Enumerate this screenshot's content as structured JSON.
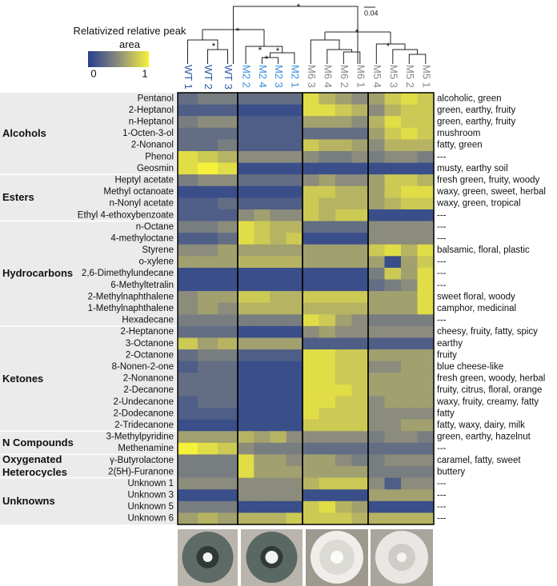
{
  "chart_data": {
    "type": "heatmap",
    "legend_title": "Relativized relative peak area",
    "zlim": [
      0,
      1
    ],
    "zticks": [
      0,
      1
    ],
    "colormap": [
      "#263f8e",
      "#8c8c7c",
      "#f6f13a"
    ],
    "dendrogram_labels": [
      "*",
      "*",
      "*",
      "*",
      "*",
      "*",
      "*",
      "*"
    ],
    "dendrogram_scale": 0.04,
    "column_groups": [
      {
        "color": "#2a5aa8",
        "columns": [
          "WT 1",
          "WT 2",
          "WT 3"
        ]
      },
      {
        "color": "#3a8ed8",
        "columns": [
          "M2 2",
          "M2 4",
          "M2 3",
          "M2 1"
        ]
      },
      {
        "color": "#858585",
        "columns": [
          "M6 3",
          "M6 4",
          "M6 2",
          "M6 1"
        ]
      },
      {
        "color": "#858585",
        "columns": [
          "M5 4",
          "M5 3",
          "M5 2",
          "M5 1"
        ]
      }
    ],
    "row_groups": [
      {
        "name": "Alcohols",
        "rows": [
          "Pentanol",
          "2-Heptanol",
          "n-Heptanol",
          "1-Octen-3-ol",
          "2-Nonanol",
          "Phenol",
          "Geosmin"
        ]
      },
      {
        "name": "Esters",
        "rows": [
          "Heptyl acetate",
          "Methyl octanoate",
          "n-Nonyl acetate",
          "Ethyl 4-ethoxybenzoate"
        ]
      },
      {
        "name": "Hydrocarbons",
        "rows": [
          "n-Octane",
          "4-methyloctane",
          "Styrene",
          "o-xylene",
          "2,6-Dimethylundecane",
          "6-Methyltetralin",
          "2-Methylnaphthalene",
          "1-Methylnaphthalene",
          "Hexadecane"
        ]
      },
      {
        "name": "Ketones",
        "rows": [
          "2-Heptanone",
          "3-Octanone",
          "2-Octanone",
          "8-Nonen-2-one",
          "2-Nonanone",
          "2-Decanone",
          "2-Undecanone",
          "2-Dodecanone",
          "2-Tridecanone"
        ]
      },
      {
        "name": "N Compounds",
        "rows": [
          "3-Methylpyridine",
          "Methenamine"
        ]
      },
      {
        "name": "Oxygenated Heterocycles",
        "rows": [
          "γ-Butyrolactone",
          "2(5H)-Furanone"
        ]
      },
      {
        "name": "Unknowns",
        "rows": [
          "Unknown 1",
          "Unknown 3",
          "Unknown 5",
          "Unknown 6"
        ]
      }
    ],
    "descriptors": [
      "alcoholic, green",
      "green, earthy, fruity",
      "green, earthy, fruity",
      "mushroom",
      "fatty, green",
      "---",
      "musty, earthy soil",
      "fresh green, fruity, woody",
      "waxy, green, sweet, herbal",
      "waxy, green, tropical",
      "---",
      "---",
      "---",
      "balsamic, floral, plastic",
      "---",
      "---",
      "---",
      "sweet floral, woody",
      "camphor, medicinal",
      "---",
      "cheesy, fruity, fatty, spicy",
      "earthy",
      "fruity",
      "blue cheese-like",
      "fresh green, woody, herbal",
      "fruity, citrus, floral, orange",
      "waxy, fruity, creamy, fatty",
      "fatty",
      "fatty, waxy, dairy, milk",
      "green, earthy, hazelnut",
      "---",
      "caramel, fatty, sweet",
      "buttery",
      "---",
      "---",
      "---",
      "---"
    ],
    "values": [
      [
        0.3,
        0.4,
        0.4,
        0.3,
        0.3,
        0.3,
        0.3,
        0.9,
        0.7,
        0.6,
        0.5,
        0.6,
        0.8,
        0.9,
        0.8
      ],
      [
        0.2,
        0.2,
        0.2,
        0.1,
        0.1,
        0.1,
        0.1,
        0.9,
        0.9,
        0.8,
        0.7,
        0.5,
        0.7,
        0.8,
        0.8
      ],
      [
        0.4,
        0.5,
        0.5,
        0.2,
        0.2,
        0.2,
        0.2,
        0.6,
        0.6,
        0.6,
        0.5,
        0.7,
        0.9,
        0.8,
        0.8
      ],
      [
        0.3,
        0.3,
        0.3,
        0.2,
        0.2,
        0.2,
        0.2,
        0.3,
        0.3,
        0.3,
        0.3,
        0.6,
        0.8,
        0.9,
        0.8
      ],
      [
        0.3,
        0.3,
        0.4,
        0.2,
        0.2,
        0.2,
        0.2,
        0.8,
        0.7,
        0.7,
        0.6,
        0.5,
        0.7,
        0.7,
        0.7
      ],
      [
        0.9,
        0.8,
        0.7,
        0.5,
        0.5,
        0.5,
        0.5,
        0.5,
        0.4,
        0.4,
        0.5,
        0.4,
        0.5,
        0.5,
        0.4
      ],
      [
        0.9,
        1.0,
        0.9,
        0.1,
        0.1,
        0.1,
        0.1,
        0.1,
        0.1,
        0.1,
        0.1,
        0.1,
        0.1,
        0.1,
        0.1
      ],
      [
        0.4,
        0.5,
        0.5,
        0.3,
        0.3,
        0.3,
        0.3,
        0.5,
        0.6,
        0.5,
        0.5,
        0.6,
        0.8,
        0.8,
        0.7
      ],
      [
        0.1,
        0.1,
        0.1,
        0.1,
        0.1,
        0.1,
        0.1,
        0.8,
        0.8,
        0.7,
        0.7,
        0.6,
        0.8,
        0.9,
        0.9
      ],
      [
        0.2,
        0.2,
        0.3,
        0.2,
        0.2,
        0.2,
        0.2,
        0.8,
        0.7,
        0.7,
        0.7,
        0.6,
        0.7,
        0.8,
        0.8
      ],
      [
        0.2,
        0.2,
        0.2,
        0.5,
        0.6,
        0.5,
        0.5,
        0.8,
        0.7,
        0.8,
        0.8,
        0.1,
        0.1,
        0.1,
        0.1
      ],
      [
        0.4,
        0.4,
        0.5,
        0.9,
        0.8,
        0.7,
        0.7,
        0.3,
        0.3,
        0.3,
        0.3,
        0.5,
        0.5,
        0.5,
        0.5
      ],
      [
        0.2,
        0.2,
        0.3,
        0.9,
        0.8,
        0.7,
        0.8,
        0.1,
        0.1,
        0.1,
        0.1,
        0.5,
        0.5,
        0.5,
        0.5
      ],
      [
        0.5,
        0.5,
        0.6,
        0.6,
        0.6,
        0.6,
        0.6,
        0.6,
        0.6,
        0.6,
        0.6,
        0.8,
        0.9,
        0.7,
        0.9
      ],
      [
        0.6,
        0.6,
        0.6,
        0.7,
        0.7,
        0.7,
        0.7,
        0.6,
        0.6,
        0.6,
        0.6,
        0.6,
        0.1,
        0.6,
        0.8
      ],
      [
        0.1,
        0.1,
        0.1,
        0.1,
        0.1,
        0.1,
        0.1,
        0.1,
        0.1,
        0.1,
        0.1,
        0.4,
        0.8,
        0.6,
        0.9
      ],
      [
        0.1,
        0.1,
        0.1,
        0.1,
        0.1,
        0.1,
        0.1,
        0.1,
        0.1,
        0.1,
        0.1,
        0.3,
        0.4,
        0.5,
        0.9
      ],
      [
        0.5,
        0.6,
        0.6,
        0.8,
        0.8,
        0.7,
        0.7,
        0.8,
        0.8,
        0.8,
        0.8,
        0.6,
        0.6,
        0.6,
        0.9
      ],
      [
        0.5,
        0.6,
        0.5,
        0.7,
        0.7,
        0.7,
        0.7,
        0.7,
        0.7,
        0.7,
        0.7,
        0.6,
        0.6,
        0.6,
        0.9
      ],
      [
        0.4,
        0.4,
        0.4,
        0.4,
        0.4,
        0.4,
        0.4,
        0.9,
        0.8,
        0.6,
        0.5,
        0.4,
        0.4,
        0.4,
        0.4
      ],
      [
        0.3,
        0.3,
        0.3,
        0.1,
        0.1,
        0.1,
        0.1,
        0.5,
        0.6,
        0.5,
        0.5,
        0.5,
        0.5,
        0.5,
        0.5
      ],
      [
        0.8,
        0.6,
        0.7,
        0.6,
        0.6,
        0.6,
        0.6,
        0.2,
        0.2,
        0.2,
        0.2,
        0.2,
        0.2,
        0.2,
        0.2
      ],
      [
        0.3,
        0.4,
        0.4,
        0.2,
        0.2,
        0.2,
        0.2,
        0.9,
        0.9,
        0.8,
        0.8,
        0.6,
        0.6,
        0.6,
        0.6
      ],
      [
        0.2,
        0.3,
        0.3,
        0.1,
        0.1,
        0.1,
        0.1,
        0.9,
        0.9,
        0.8,
        0.8,
        0.5,
        0.5,
        0.6,
        0.6
      ],
      [
        0.3,
        0.3,
        0.3,
        0.1,
        0.1,
        0.1,
        0.1,
        0.9,
        0.9,
        0.8,
        0.8,
        0.6,
        0.6,
        0.6,
        0.6
      ],
      [
        0.3,
        0.3,
        0.3,
        0.1,
        0.1,
        0.1,
        0.1,
        0.9,
        0.9,
        0.9,
        0.8,
        0.6,
        0.6,
        0.6,
        0.6
      ],
      [
        0.2,
        0.3,
        0.3,
        0.1,
        0.1,
        0.1,
        0.1,
        0.9,
        0.9,
        0.8,
        0.8,
        0.5,
        0.6,
        0.6,
        0.6
      ],
      [
        0.2,
        0.2,
        0.2,
        0.1,
        0.1,
        0.1,
        0.1,
        0.9,
        0.8,
        0.8,
        0.8,
        0.5,
        0.5,
        0.5,
        0.5
      ],
      [
        0.1,
        0.1,
        0.1,
        0.1,
        0.1,
        0.1,
        0.1,
        0.8,
        0.8,
        0.8,
        0.8,
        0.5,
        0.5,
        0.6,
        0.6
      ],
      [
        0.6,
        0.6,
        0.6,
        0.7,
        0.6,
        0.7,
        0.5,
        0.5,
        0.5,
        0.5,
        0.5,
        0.4,
        0.5,
        0.5,
        0.4
      ],
      [
        1.0,
        0.9,
        0.8,
        0.5,
        0.4,
        0.4,
        0.4,
        0.3,
        0.3,
        0.3,
        0.3,
        0.3,
        0.3,
        0.3,
        0.3
      ],
      [
        0.4,
        0.4,
        0.4,
        0.9,
        0.6,
        0.6,
        0.5,
        0.6,
        0.6,
        0.5,
        0.4,
        0.4,
        0.5,
        0.5,
        0.5
      ],
      [
        0.4,
        0.4,
        0.4,
        0.9,
        0.6,
        0.6,
        0.6,
        0.6,
        0.6,
        0.6,
        0.6,
        0.4,
        0.4,
        0.4,
        0.4
      ],
      [
        0.5,
        0.5,
        0.5,
        0.5,
        0.5,
        0.5,
        0.5,
        0.7,
        0.8,
        0.8,
        0.8,
        0.5,
        0.2,
        0.5,
        0.5
      ],
      [
        0.1,
        0.1,
        0.1,
        0.5,
        0.5,
        0.5,
        0.5,
        0.1,
        0.1,
        0.1,
        0.1,
        0.6,
        0.6,
        0.6,
        0.6
      ],
      [
        0.4,
        0.4,
        0.4,
        0.1,
        0.1,
        0.1,
        0.1,
        0.8,
        0.9,
        0.7,
        0.6,
        0.1,
        0.1,
        0.1,
        0.1
      ],
      [
        0.6,
        0.7,
        0.6,
        0.7,
        0.7,
        0.7,
        0.8,
        0.8,
        0.8,
        0.8,
        0.7,
        0.7,
        0.7,
        0.7,
        0.7
      ]
    ]
  }
}
